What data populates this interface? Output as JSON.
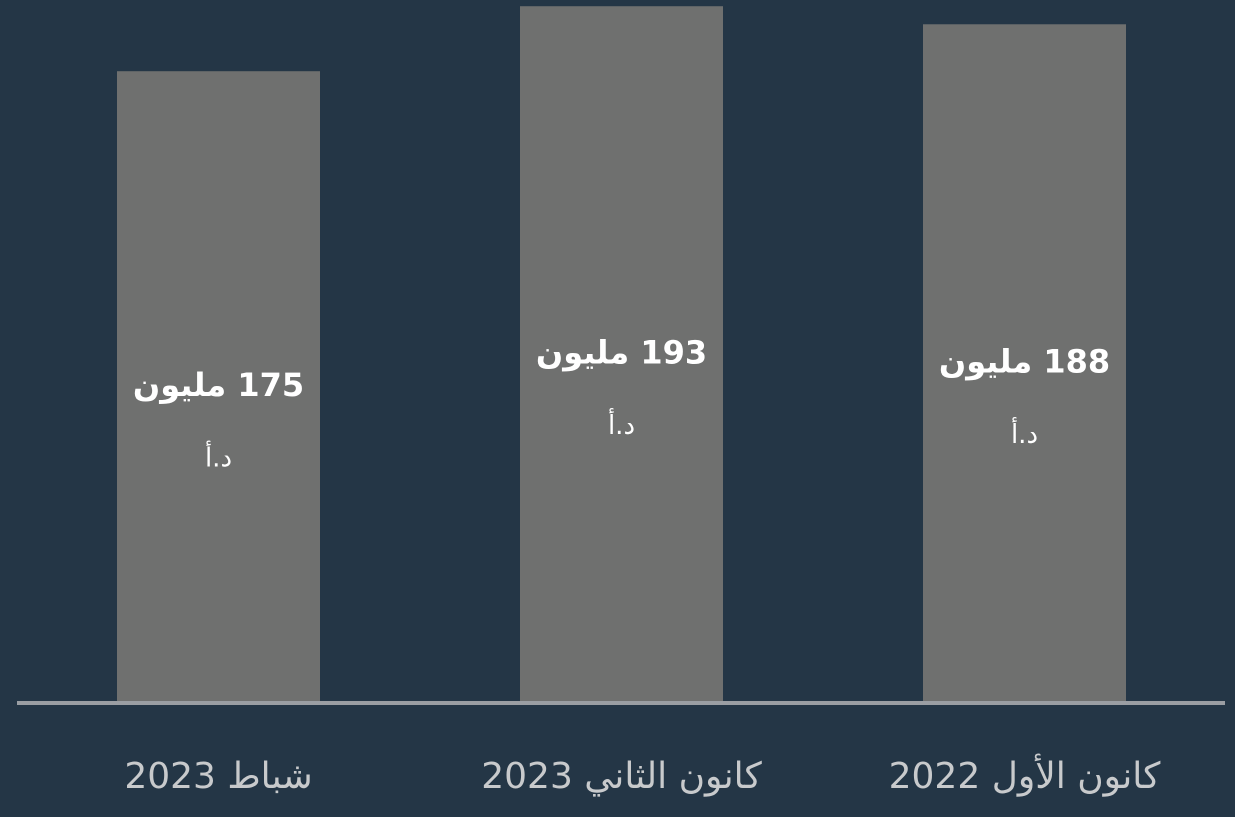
{
  "chart_data": {
    "type": "bar",
    "categories": [
      "شباط 2023",
      "كانون الثاني 2023",
      "كانون الأول 2022"
    ],
    "values": [
      175,
      193,
      188
    ],
    "value_labels": [
      "175 مليون",
      "193 مليون",
      "188 مليون"
    ],
    "unit_label": "د.أ",
    "color": "#6f706f",
    "ylim": [
      0,
      195
    ]
  }
}
